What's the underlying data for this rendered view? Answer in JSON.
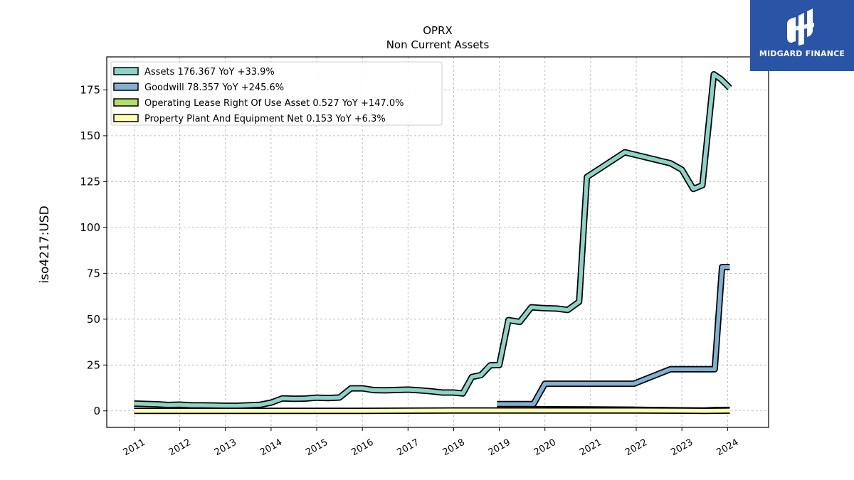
{
  "chart_data": {
    "type": "line",
    "title": "OPRX",
    "subtitle": "Non Current  Assets",
    "ylabel": "iso4217:USD",
    "xlabel": "",
    "ylim": [
      -9,
      193
    ],
    "xlim": [
      2010.4,
      2024.9
    ],
    "yticks": [
      0,
      25,
      50,
      75,
      100,
      125,
      150,
      175
    ],
    "xticks": [
      "2011",
      "2012",
      "2013",
      "2014",
      "2015",
      "2016",
      "2017",
      "2018",
      "2019",
      "2020",
      "2021",
      "2022",
      "2023",
      "2024"
    ],
    "grid": true,
    "legend_position": "top-left",
    "series": [
      {
        "name": "Assets",
        "legend": "Assets  176.367 YoY +33.9%",
        "color": "#8dd3c7",
        "points": [
          [
            2011.0,
            4.0
          ],
          [
            2011.5,
            3.6
          ],
          [
            2011.75,
            3.2
          ],
          [
            2012.0,
            3.4
          ],
          [
            2012.25,
            3.0
          ],
          [
            2012.5,
            3.0
          ],
          [
            2012.75,
            2.9
          ],
          [
            2013.0,
            2.8
          ],
          [
            2013.25,
            2.8
          ],
          [
            2013.5,
            3.0
          ],
          [
            2013.75,
            3.3
          ],
          [
            2014.0,
            4.5
          ],
          [
            2014.25,
            6.8
          ],
          [
            2014.5,
            6.6
          ],
          [
            2014.75,
            6.7
          ],
          [
            2015.0,
            7.2
          ],
          [
            2015.25,
            7.0
          ],
          [
            2015.5,
            7.3
          ],
          [
            2015.75,
            12.3
          ],
          [
            2016.0,
            12.3
          ],
          [
            2016.25,
            11.3
          ],
          [
            2016.5,
            11.2
          ],
          [
            2016.75,
            11.4
          ],
          [
            2017.0,
            11.6
          ],
          [
            2017.25,
            11.2
          ],
          [
            2017.5,
            10.7
          ],
          [
            2017.75,
            10.0
          ],
          [
            2018.0,
            10.0
          ],
          [
            2018.2,
            9.5
          ],
          [
            2018.4,
            18.5
          ],
          [
            2018.6,
            19.5
          ],
          [
            2018.8,
            24.8
          ],
          [
            2019.0,
            25.0
          ],
          [
            2019.2,
            49.5
          ],
          [
            2019.45,
            48.5
          ],
          [
            2019.7,
            56.5
          ],
          [
            2020.0,
            56.0
          ],
          [
            2020.25,
            55.8
          ],
          [
            2020.5,
            55.0
          ],
          [
            2020.75,
            59.5
          ],
          [
            2020.92,
            127.5
          ],
          [
            2021.75,
            141.0
          ],
          [
            2022.5,
            136.5
          ],
          [
            2022.75,
            135.0
          ],
          [
            2023.0,
            131.5
          ],
          [
            2023.25,
            121.0
          ],
          [
            2023.45,
            123.0
          ],
          [
            2023.7,
            183.5
          ],
          [
            2023.85,
            181.0
          ],
          [
            2024.05,
            176.0
          ]
        ]
      },
      {
        "name": "Goodwill",
        "legend": "Goodwill  78.357 YoY +245.6%",
        "color": "#80b1d3",
        "points": [
          [
            2018.95,
            3.7
          ],
          [
            2019.75,
            3.7
          ],
          [
            2020.0,
            14.8
          ],
          [
            2020.5,
            14.8
          ],
          [
            2021.0,
            14.8
          ],
          [
            2021.5,
            14.8
          ],
          [
            2021.95,
            14.8
          ],
          [
            2022.75,
            22.7
          ],
          [
            2023.0,
            22.7
          ],
          [
            2023.5,
            22.7
          ],
          [
            2023.72,
            22.7
          ],
          [
            2023.88,
            78.4
          ],
          [
            2024.05,
            78.4
          ]
        ]
      },
      {
        "name": "Operating Lease Right Of Use Asset",
        "legend": "Operating Lease Right Of Use Asset  0.527 YoY +147.0%",
        "color": "#b3de69",
        "points": [
          [
            2018.95,
            1.0
          ],
          [
            2019.5,
            1.0
          ],
          [
            2020.0,
            0.9
          ],
          [
            2021.0,
            0.8
          ],
          [
            2022.0,
            0.6
          ],
          [
            2023.0,
            0.3
          ],
          [
            2023.5,
            0.2
          ],
          [
            2023.75,
            0.5
          ],
          [
            2024.05,
            0.53
          ]
        ]
      },
      {
        "name": "Property Plant And Equipment Net",
        "legend": "Property Plant And Equipment Net  0.153 YoY +6.3%",
        "color": "#ffffb3",
        "points": [
          [
            2011.0,
            0.0
          ],
          [
            2013.0,
            0.0
          ],
          [
            2016.0,
            0.0
          ],
          [
            2017.0,
            0.1
          ],
          [
            2018.0,
            0.2
          ],
          [
            2019.0,
            0.2
          ],
          [
            2021.0,
            0.2
          ],
          [
            2022.0,
            0.2
          ],
          [
            2023.0,
            0.1
          ],
          [
            2023.5,
            0.0
          ],
          [
            2024.05,
            0.15
          ]
        ]
      }
    ]
  },
  "logo": {
    "name": "MIDGARD FINANCE",
    "color": "#2a55a6"
  }
}
